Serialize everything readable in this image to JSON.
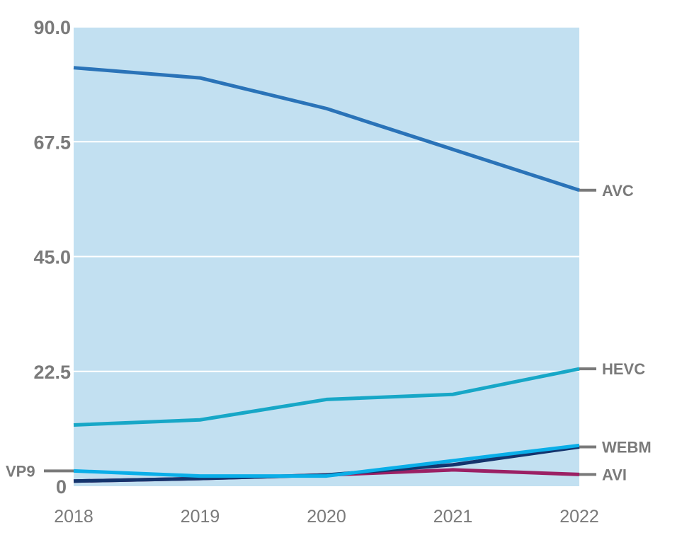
{
  "chart_data": {
    "type": "line",
    "x": [
      2018,
      2019,
      2020,
      2021,
      2022
    ],
    "xticks": [
      "2018",
      "2019",
      "2020",
      "2021",
      "2022"
    ],
    "ylim": [
      0,
      90
    ],
    "yticks": [
      0,
      22.5,
      45.0,
      67.5,
      90.0
    ],
    "ytick_labels": [
      "0",
      "22.5",
      "45.0",
      "67.5",
      "90.0"
    ],
    "grid": true,
    "colors": {
      "plot_background": "#c2e0f1",
      "grid": "#ffffff",
      "axis_text": "#7a7a7a",
      "label_marker": "#7a7a7a"
    },
    "series": [
      {
        "name": "AVC",
        "color": "#2a73b8",
        "values": [
          82,
          80,
          74,
          66,
          58
        ],
        "label_side": "right"
      },
      {
        "name": "HEVC",
        "color": "#17a7c7",
        "values": [
          12,
          13,
          17,
          18,
          23
        ],
        "label_side": "right"
      },
      {
        "name": "VP9",
        "color": "#0aaee8",
        "values": [
          3,
          2,
          2,
          5,
          8
        ],
        "label_side": "left"
      },
      {
        "name": "WEBM",
        "color": "#14346d",
        "values": [
          1,
          1.5,
          2.2,
          4.2,
          7.7
        ],
        "label_side": "right"
      },
      {
        "name": "AVI",
        "color": "#9b2064",
        "values": [
          1,
          1.5,
          2.2,
          3.2,
          2.3
        ],
        "label_side": "right"
      }
    ],
    "label_order_right": [
      "AVC",
      "HEVC",
      "WEBM",
      "AVI"
    ]
  }
}
